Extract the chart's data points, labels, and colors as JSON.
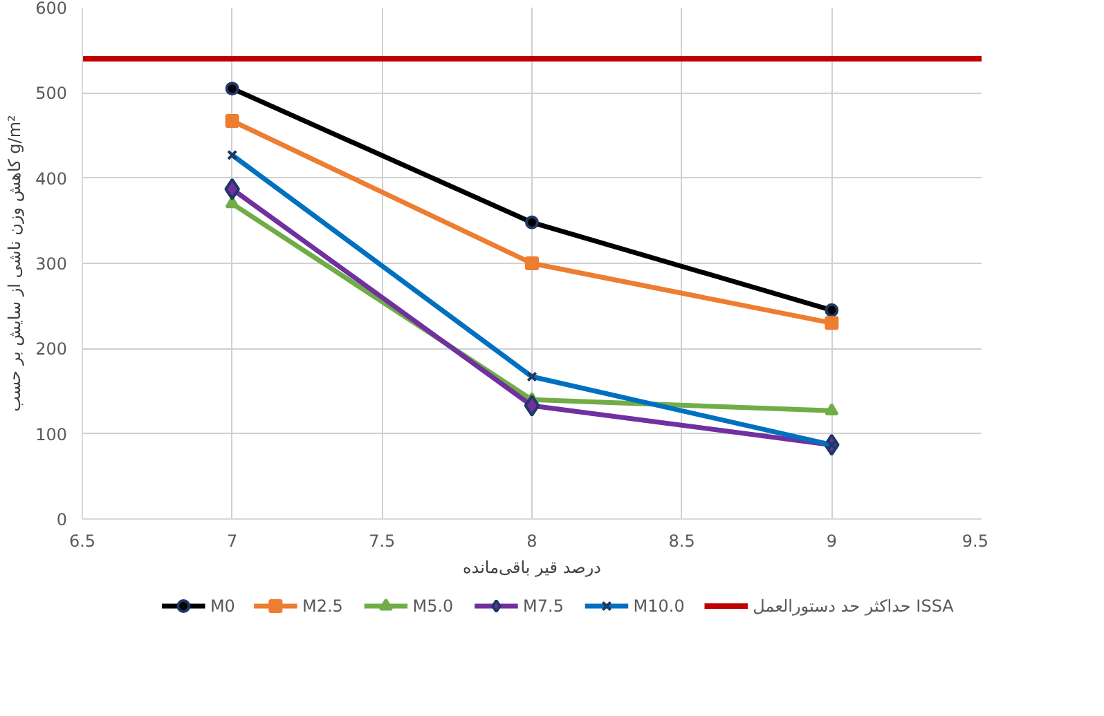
{
  "chart_data": {
    "type": "line",
    "xlabel": "درصد قیر باقی‌مانده",
    "ylabel": "کاهش وزن ناشی از سایش بر حسب g/m²",
    "x": [
      7,
      8,
      9
    ],
    "series": [
      {
        "name": "M0",
        "color": "#000000",
        "marker": "circle",
        "values": [
          505,
          348,
          245
        ]
      },
      {
        "name": "M2.5",
        "color": "#ed7d31",
        "marker": "square",
        "values": [
          467,
          300,
          230
        ]
      },
      {
        "name": "M5.0",
        "color": "#70ad47",
        "marker": "triangle",
        "values": [
          370,
          140,
          127
        ]
      },
      {
        "name": "M7.5",
        "color": "#7030a0",
        "marker": "diamond",
        "values": [
          387,
          133,
          87
        ]
      },
      {
        "name": "M10.0",
        "color": "#0070c0",
        "marker": "cross",
        "values": [
          427,
          167,
          87
        ]
      }
    ],
    "ref_lines": [
      {
        "axis": "y",
        "value": 540,
        "label": "حداکثر حد دستورالعمل ISSA",
        "color": "#c00000"
      }
    ],
    "xlim": [
      6.5,
      9.5
    ],
    "xticks": [
      6.5,
      7,
      7.5,
      8,
      8.5,
      9,
      9.5
    ],
    "ylim": [
      0,
      600
    ],
    "yticks": [
      0,
      100,
      200,
      300,
      400,
      500,
      600
    ],
    "grid": true,
    "legend": "bottom",
    "line_style": "solid"
  }
}
